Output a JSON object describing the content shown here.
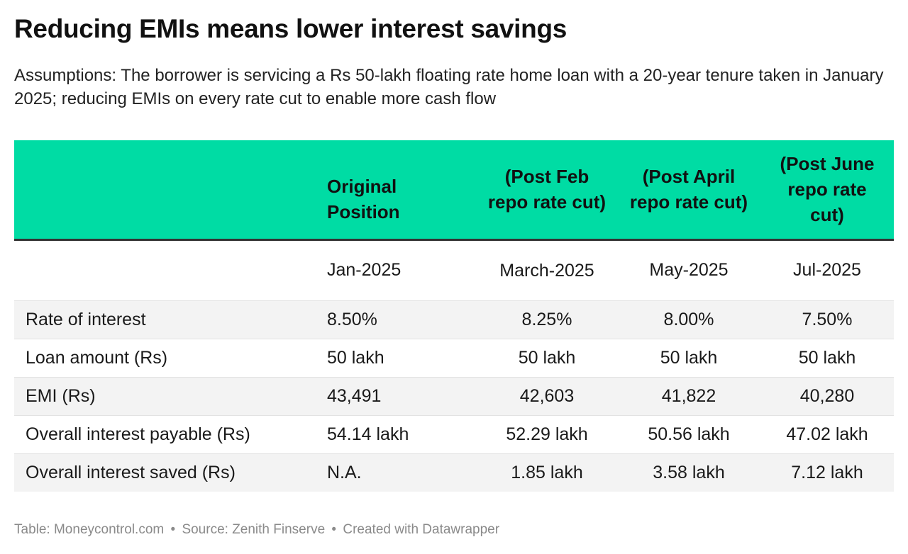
{
  "title": "Reducing EMIs means lower interest savings",
  "subtitle": "Assumptions: The borrower is servicing a Rs 50-lakh floating rate home loan with a 20-year tenure taken in January 2025; reducing EMIs on every rate cut to enable more cash flow",
  "colors": {
    "header_bg": "#00dca4",
    "alt_row_bg": "#f3f3f3"
  },
  "chart_data": {
    "type": "table",
    "columns": [
      "",
      "Original Position",
      "(Post Feb repo rate cut)",
      "(Post April repo rate cut)",
      "(Post June repo rate cut)"
    ],
    "rows": [
      [
        "",
        "Jan-2025",
        "March-2025",
        "May-2025",
        "Jul-2025"
      ],
      [
        "Rate of interest",
        "8.50%",
        "8.25%",
        "8.00%",
        "7.50%"
      ],
      [
        "Loan amount (Rs)",
        "50 lakh",
        "50 lakh",
        "50 lakh",
        "50 lakh"
      ],
      [
        "EMI (Rs)",
        "43,491",
        "42,603",
        "41,822",
        "40,280"
      ],
      [
        "Overall interest payable (Rs)",
        "54.14 lakh",
        "52.29 lakh",
        "50.56 lakh",
        "47.02 lakh"
      ],
      [
        "Overall interest saved (Rs)",
        "N.A.",
        "1.85 lakh",
        "3.58 lakh",
        "7.12 lakh"
      ]
    ]
  },
  "footer": {
    "table_credit": "Table: Moneycontrol.com",
    "source": "Source: Zenith Finserve",
    "created": "Created with Datawrapper",
    "separator": "•"
  }
}
